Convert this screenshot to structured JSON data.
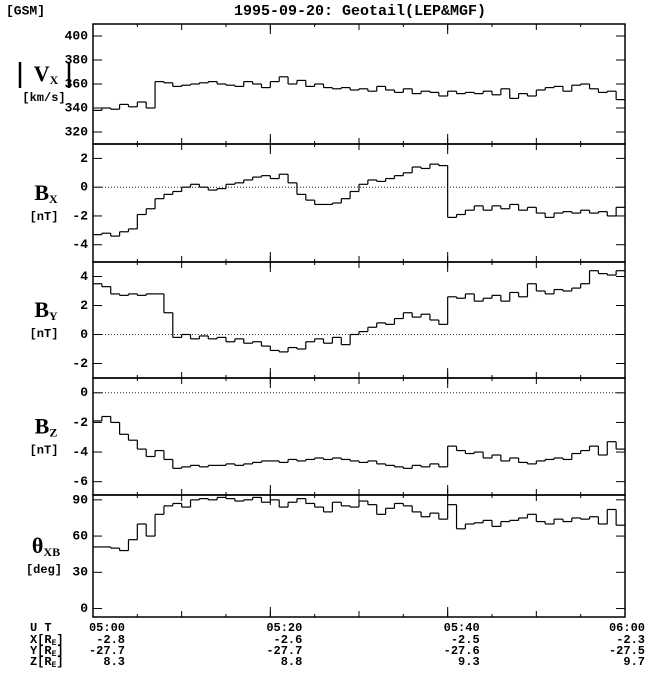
{
  "coordinate_system": "[GSM]",
  "title": "1995-09-20: Geotail(LEP&MGF)",
  "chart_data": [
    {
      "type": "step",
      "ylabel": {
        "symbol": "V",
        "subscript": "X",
        "unit": "[km/s]"
      },
      "absolute": true,
      "color": "#000000",
      "x": [
        "05:00",
        "05:01",
        "05:02",
        "05:03",
        "05:04",
        "05:05",
        "05:06",
        "05:07",
        "05:08",
        "05:09",
        "05:10",
        "05:11",
        "05:12",
        "05:13",
        "05:14",
        "05:15",
        "05:16",
        "05:17",
        "05:18",
        "05:19",
        "05:20",
        "05:21",
        "05:22",
        "05:23",
        "05:24",
        "05:25",
        "05:26",
        "05:27",
        "05:28",
        "05:29",
        "05:30",
        "05:31",
        "05:32",
        "05:33",
        "05:34",
        "05:35",
        "05:36",
        "05:37",
        "05:38",
        "05:39",
        "05:40",
        "05:41",
        "05:42",
        "05:43",
        "05:44",
        "05:45",
        "05:46",
        "05:47",
        "05:48",
        "05:49",
        "05:50",
        "05:51",
        "05:52",
        "05:53",
        "05:54",
        "05:55",
        "05:56",
        "05:57",
        "05:58",
        "05:59"
      ],
      "values": [
        338,
        340,
        339,
        343,
        341,
        345,
        340,
        362,
        361,
        358,
        359,
        360,
        361,
        362,
        360,
        359,
        358,
        362,
        360,
        357,
        362,
        366,
        360,
        363,
        358,
        360,
        357,
        356,
        357,
        355,
        356,
        354,
        358,
        355,
        353,
        356,
        352,
        354,
        353,
        350,
        354,
        352,
        353,
        352,
        354,
        351,
        356,
        348,
        352,
        350,
        355,
        357,
        358,
        354,
        359,
        360,
        356,
        353,
        354,
        347
      ],
      "xlim": [
        "05:00",
        "06:00"
      ],
      "xticks": [
        "05:00",
        "05:20",
        "05:40",
        "06:00"
      ],
      "ylim": [
        310,
        410
      ],
      "yticks": [
        320,
        340,
        360,
        380,
        400
      ]
    },
    {
      "type": "step",
      "ylabel": {
        "symbol": "B",
        "subscript": "X",
        "unit": "[nT]"
      },
      "reference_line": 0,
      "color": "#000000",
      "x": [
        "05:00",
        "05:01",
        "05:02",
        "05:03",
        "05:04",
        "05:05",
        "05:06",
        "05:07",
        "05:08",
        "05:09",
        "05:10",
        "05:11",
        "05:12",
        "05:13",
        "05:14",
        "05:15",
        "05:16",
        "05:17",
        "05:18",
        "05:19",
        "05:20",
        "05:21",
        "05:22",
        "05:23",
        "05:24",
        "05:25",
        "05:26",
        "05:27",
        "05:28",
        "05:29",
        "05:30",
        "05:31",
        "05:32",
        "05:33",
        "05:34",
        "05:35",
        "05:36",
        "05:37",
        "05:38",
        "05:39",
        "05:40",
        "05:41",
        "05:42",
        "05:43",
        "05:44",
        "05:45",
        "05:46",
        "05:47",
        "05:48",
        "05:49",
        "05:50",
        "05:51",
        "05:52",
        "05:53",
        "05:54",
        "05:55",
        "05:56",
        "05:57",
        "05:58",
        "05:59"
      ],
      "values": [
        -3.3,
        -3.2,
        -3.4,
        -3.1,
        -2.9,
        -1.9,
        -1.5,
        -0.8,
        -0.5,
        -0.3,
        0,
        0.2,
        0,
        -0.2,
        -0.1,
        0.2,
        0.3,
        0.5,
        0.7,
        0.8,
        0.6,
        0.9,
        0.3,
        -0.5,
        -0.9,
        -1.2,
        -1.2,
        -1.1,
        -0.8,
        -0.3,
        0.2,
        0.5,
        0.4,
        0.6,
        0.8,
        1.0,
        1.4,
        1.3,
        1.6,
        1.5,
        -2.1,
        -1.9,
        -1.6,
        -1.3,
        -1.6,
        -1.3,
        -1.5,
        -1.2,
        -1.6,
        -1.4,
        -1.8,
        -2.1,
        -1.8,
        -1.7,
        -1.8,
        -1.6,
        -1.8,
        -1.7,
        -2.0,
        -1.4
      ],
      "xlim": [
        "05:00",
        "06:00"
      ],
      "xticks": [
        "05:00",
        "05:20",
        "05:40",
        "06:00"
      ],
      "ylim": [
        -5.2,
        3
      ],
      "yticks": [
        -4,
        -2,
        0,
        2
      ]
    },
    {
      "type": "step",
      "ylabel": {
        "symbol": "B",
        "subscript": "Y",
        "unit": "[nT]"
      },
      "reference_line": 0,
      "color": "#000000",
      "x": [
        "05:00",
        "05:01",
        "05:02",
        "05:03",
        "05:04",
        "05:05",
        "05:06",
        "05:07",
        "05:08",
        "05:09",
        "05:10",
        "05:11",
        "05:12",
        "05:13",
        "05:14",
        "05:15",
        "05:16",
        "05:17",
        "05:18",
        "05:19",
        "05:20",
        "05:21",
        "05:22",
        "05:23",
        "05:24",
        "05:25",
        "05:26",
        "05:27",
        "05:28",
        "05:29",
        "05:30",
        "05:31",
        "05:32",
        "05:33",
        "05:34",
        "05:35",
        "05:36",
        "05:37",
        "05:38",
        "05:39",
        "05:40",
        "05:41",
        "05:42",
        "05:43",
        "05:44",
        "05:45",
        "05:46",
        "05:47",
        "05:48",
        "05:49",
        "05:50",
        "05:51",
        "05:52",
        "05:53",
        "05:54",
        "05:55",
        "05:56",
        "05:57",
        "05:58",
        "05:59"
      ],
      "values": [
        3.5,
        3.3,
        2.8,
        2.7,
        2.8,
        2.7,
        2.8,
        2.8,
        1.5,
        -0.2,
        0,
        -0.3,
        -0.1,
        -0.3,
        -0.2,
        -0.5,
        -0.3,
        -0.6,
        -0.5,
        -0.8,
        -1.1,
        -1.2,
        -0.9,
        -1.0,
        -0.5,
        -0.3,
        -0.6,
        -0.2,
        -0.7,
        0,
        0.2,
        0.5,
        0.8,
        0.7,
        1.1,
        1.5,
        1.2,
        1.4,
        1.0,
        0.7,
        2.6,
        2.5,
        2.8,
        2.3,
        2.5,
        2.7,
        2.3,
        2.9,
        2.6,
        3.5,
        3.0,
        2.8,
        3.1,
        3.0,
        3.2,
        3.5,
        4.4,
        4.2,
        4.1,
        4.4
      ],
      "xlim": [
        "05:00",
        "06:00"
      ],
      "xticks": [
        "05:00",
        "05:20",
        "05:40",
        "06:00"
      ],
      "ylim": [
        -3,
        5
      ],
      "yticks": [
        -2,
        0,
        2,
        4
      ]
    },
    {
      "type": "step",
      "ylabel": {
        "symbol": "B",
        "subscript": "Z",
        "unit": "[nT]"
      },
      "reference_line": 0,
      "color": "#000000",
      "x": [
        "05:00",
        "05:01",
        "05:02",
        "05:03",
        "05:04",
        "05:05",
        "05:06",
        "05:07",
        "05:08",
        "05:09",
        "05:10",
        "05:11",
        "05:12",
        "05:13",
        "05:14",
        "05:15",
        "05:16",
        "05:17",
        "05:18",
        "05:19",
        "05:20",
        "05:21",
        "05:22",
        "05:23",
        "05:24",
        "05:25",
        "05:26",
        "05:27",
        "05:28",
        "05:29",
        "05:30",
        "05:31",
        "05:32",
        "05:33",
        "05:34",
        "05:35",
        "05:36",
        "05:37",
        "05:38",
        "05:39",
        "05:40",
        "05:41",
        "05:42",
        "05:43",
        "05:44",
        "05:45",
        "05:46",
        "05:47",
        "05:48",
        "05:49",
        "05:50",
        "05:51",
        "05:52",
        "05:53",
        "05:54",
        "05:55",
        "05:56",
        "05:57",
        "05:58",
        "05:59"
      ],
      "values": [
        -1.9,
        -1.6,
        -2.0,
        -2.8,
        -3.2,
        -3.8,
        -4.3,
        -3.9,
        -4.5,
        -5.1,
        -5.0,
        -4.9,
        -5.0,
        -4.9,
        -4.9,
        -4.8,
        -4.9,
        -4.8,
        -4.7,
        -4.6,
        -4.6,
        -4.7,
        -4.5,
        -4.6,
        -4.5,
        -4.4,
        -4.5,
        -4.4,
        -4.5,
        -4.6,
        -4.7,
        -4.6,
        -4.8,
        -4.9,
        -5.0,
        -5.1,
        -4.9,
        -5.0,
        -4.8,
        -5.0,
        -3.6,
        -3.9,
        -4.1,
        -4.0,
        -4.4,
        -4.2,
        -4.6,
        -4.4,
        -4.7,
        -4.8,
        -4.6,
        -4.5,
        -4.4,
        -4.5,
        -4.1,
        -3.9,
        -3.6,
        -4.2,
        -3.3,
        -3.8
      ],
      "xlim": [
        "05:00",
        "06:00"
      ],
      "xticks": [
        "05:00",
        "05:20",
        "05:40",
        "06:00"
      ],
      "ylim": [
        -6.9,
        1
      ],
      "yticks": [
        -6,
        -4,
        -2,
        0
      ]
    },
    {
      "type": "step",
      "ylabel": {
        "symbol": "θ",
        "subscript": "XB",
        "unit": "[deg]"
      },
      "color": "#000000",
      "x": [
        "05:00",
        "05:01",
        "05:02",
        "05:03",
        "05:04",
        "05:05",
        "05:06",
        "05:07",
        "05:08",
        "05:09",
        "05:10",
        "05:11",
        "05:12",
        "05:13",
        "05:14",
        "05:15",
        "05:16",
        "05:17",
        "05:18",
        "05:19",
        "05:20",
        "05:21",
        "05:22",
        "05:23",
        "05:24",
        "05:25",
        "05:26",
        "05:27",
        "05:28",
        "05:29",
        "05:30",
        "05:31",
        "05:32",
        "05:33",
        "05:34",
        "05:35",
        "05:36",
        "05:37",
        "05:38",
        "05:39",
        "05:40",
        "05:41",
        "05:42",
        "05:43",
        "05:44",
        "05:45",
        "05:46",
        "05:47",
        "05:48",
        "05:49",
        "05:50",
        "05:51",
        "05:52",
        "05:53",
        "05:54",
        "05:55",
        "05:56",
        "05:57",
        "05:58",
        "05:59"
      ],
      "values": [
        51,
        51,
        50,
        48,
        57,
        70,
        60,
        78,
        85,
        87,
        84,
        90,
        91,
        90,
        92,
        91,
        89,
        90,
        92,
        88,
        90,
        84,
        88,
        91,
        87,
        84,
        80,
        88,
        85,
        84,
        89,
        86,
        78,
        83,
        87,
        85,
        80,
        76,
        79,
        74,
        86,
        66,
        70,
        71,
        73,
        68,
        72,
        73,
        75,
        78,
        72,
        70,
        74,
        72,
        75,
        74,
        76,
        70,
        82,
        69
      ],
      "xlim": [
        "05:00",
        "06:00"
      ],
      "xticks": [
        "05:00",
        "05:20",
        "05:40",
        "06:00"
      ],
      "show_xtick_labels": true,
      "ylim": [
        -7,
        94
      ],
      "yticks": [
        0,
        30,
        60,
        90
      ]
    }
  ],
  "orbit": {
    "time_label": "U T",
    "rows": [
      {
        "label": "X[R",
        "sub": "E",
        "close": "]",
        "values": [
          -2.8,
          -2.6,
          -2.5,
          -2.3
        ]
      },
      {
        "label": "Y[R",
        "sub": "E",
        "close": "]",
        "values": [
          -27.7,
          -27.7,
          -27.6,
          -27.5
        ]
      },
      {
        "label": "Z[R",
        "sub": "E",
        "close": "]",
        "values": [
          8.3,
          8.8,
          9.3,
          9.7
        ]
      }
    ]
  }
}
